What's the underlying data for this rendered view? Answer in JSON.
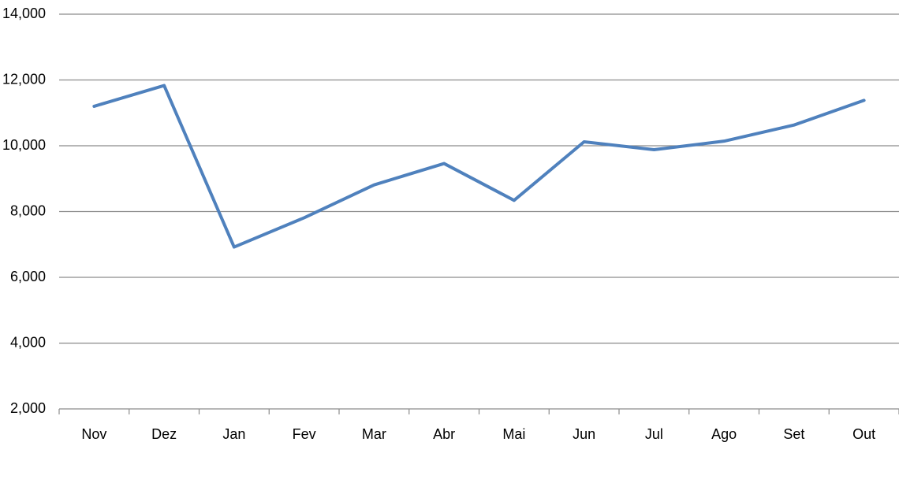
{
  "chart_data": {
    "type": "line",
    "categories": [
      "Nov",
      "Dez",
      "Jan",
      "Fev",
      "Mar",
      "Abr",
      "Mai",
      "Jun",
      "Jul",
      "Ago",
      "Set",
      "Out"
    ],
    "series": [
      {
        "color": "#4f81bd",
        "values": [
          11200,
          11830,
          6920,
          7810,
          8810,
          9460,
          8340,
          10120,
          9880,
          10140,
          10630,
          11380
        ]
      }
    ],
    "ylim": [
      2000,
      14000
    ],
    "yticks": [
      {
        "value": 2000,
        "label": "2,000"
      },
      {
        "value": 4000,
        "label": "4,000"
      },
      {
        "value": 6000,
        "label": "6,000"
      },
      {
        "value": 8000,
        "label": "8,000"
      },
      {
        "value": 10000,
        "label": "10,000"
      },
      {
        "value": 12000,
        "label": "12,000"
      },
      {
        "value": 14000,
        "label": "14,000"
      }
    ],
    "grid": true
  }
}
